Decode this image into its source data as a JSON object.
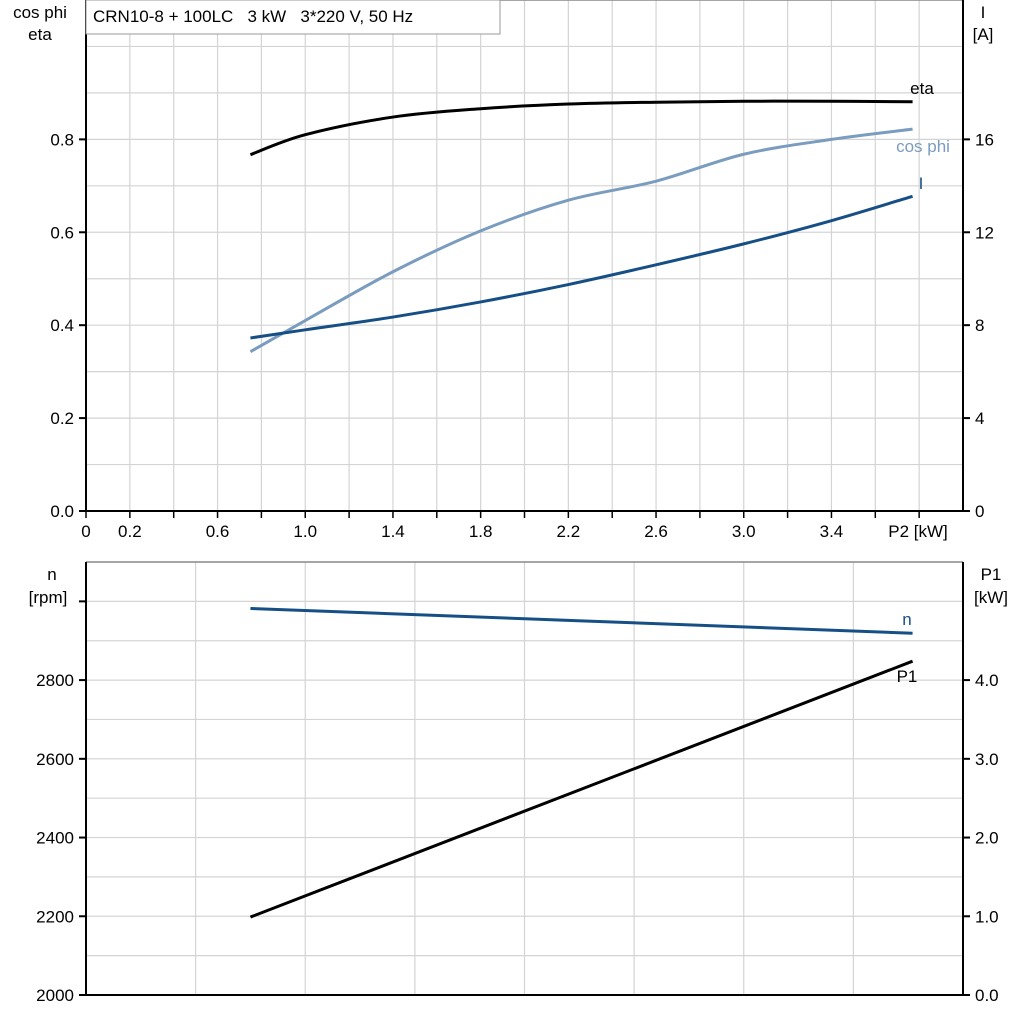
{
  "chart_data": [
    {
      "type": "line",
      "title": "CRN10-8 + 100LC   3 kW   3*220 V, 50 Hz",
      "xlabel": "P2 [kW]",
      "ylabel_left": [
        "cos phi",
        "eta"
      ],
      "ylabel_right": [
        "I",
        "[A]"
      ],
      "xlim": [
        0,
        4.0
      ],
      "ylim_left": [
        0,
        1.1
      ],
      "ylim_right": [
        0,
        22
      ],
      "x_ticks": [
        0,
        0.2,
        0.6,
        1.0,
        1.4,
        1.8,
        2.2,
        2.6,
        3.0,
        3.4
      ],
      "x_tick_labels": [
        "0",
        "0.2",
        "0.6",
        "1.0",
        "1.4",
        "1.8",
        "2.2",
        "2.6",
        "3.0",
        "3.4"
      ],
      "y_left_ticks": [
        0,
        0.2,
        0.4,
        0.6,
        0.8
      ],
      "y_left_tick_labels": [
        "0.0",
        "0.2",
        "0.4",
        "0.6",
        "0.8"
      ],
      "y_right_ticks": [
        0,
        4,
        8,
        12,
        16
      ],
      "y_right_tick_labels": [
        "0",
        "4",
        "8",
        "12",
        "16"
      ],
      "grid": true,
      "series": [
        {
          "name": "eta",
          "axis": "left",
          "color": "#000000",
          "x": [
            0.75,
            1.0,
            1.4,
            1.8,
            2.2,
            2.6,
            3.0,
            3.4,
            3.77
          ],
          "y": [
            0.767,
            0.81,
            0.848,
            0.866,
            0.876,
            0.88,
            0.882,
            0.882,
            0.881
          ]
        },
        {
          "name": "cos phi",
          "axis": "left",
          "color": "#7a9cbf",
          "x": [
            0.75,
            1.0,
            1.4,
            1.8,
            2.2,
            2.6,
            3.0,
            3.4,
            3.77
          ],
          "y": [
            0.343,
            0.41,
            0.515,
            0.603,
            0.669,
            0.71,
            0.768,
            0.8,
            0.822
          ]
        },
        {
          "name": "I",
          "axis": "right",
          "color": "#164f86",
          "x": [
            0.75,
            1.0,
            1.4,
            1.8,
            2.2,
            2.6,
            3.0,
            3.4,
            3.77
          ],
          "y": [
            7.45,
            7.8,
            8.35,
            9.0,
            9.75,
            10.6,
            11.5,
            12.5,
            13.55
          ]
        }
      ]
    },
    {
      "type": "line",
      "ylabel_left": [
        "n",
        "[rpm]"
      ],
      "ylabel_right": [
        "P1",
        "[kW]"
      ],
      "xlim": [
        0,
        4.0
      ],
      "ylim_left": [
        2000,
        3100
      ],
      "ylim_right": [
        0,
        5.5
      ],
      "y_left_ticks": [
        2000,
        2200,
        2400,
        2600,
        2800,
        3000
      ],
      "y_left_tick_labels": [
        "2000",
        "2200",
        "2400",
        "2600",
        "2800",
        ""
      ],
      "y_right_ticks": [
        0,
        1,
        2,
        3,
        4
      ],
      "y_right_tick_labels": [
        "0.0",
        "1.0",
        "2.0",
        "3.0",
        "4.0"
      ],
      "grid": true,
      "series": [
        {
          "name": "n",
          "axis": "left",
          "color": "#164f86",
          "x": [
            0.75,
            3.77
          ],
          "y": [
            2982,
            2919
          ]
        },
        {
          "name": "P1",
          "axis": "right",
          "color": "#000000",
          "x": [
            0.75,
            3.77
          ],
          "y": [
            0.99,
            4.24
          ]
        }
      ]
    }
  ]
}
